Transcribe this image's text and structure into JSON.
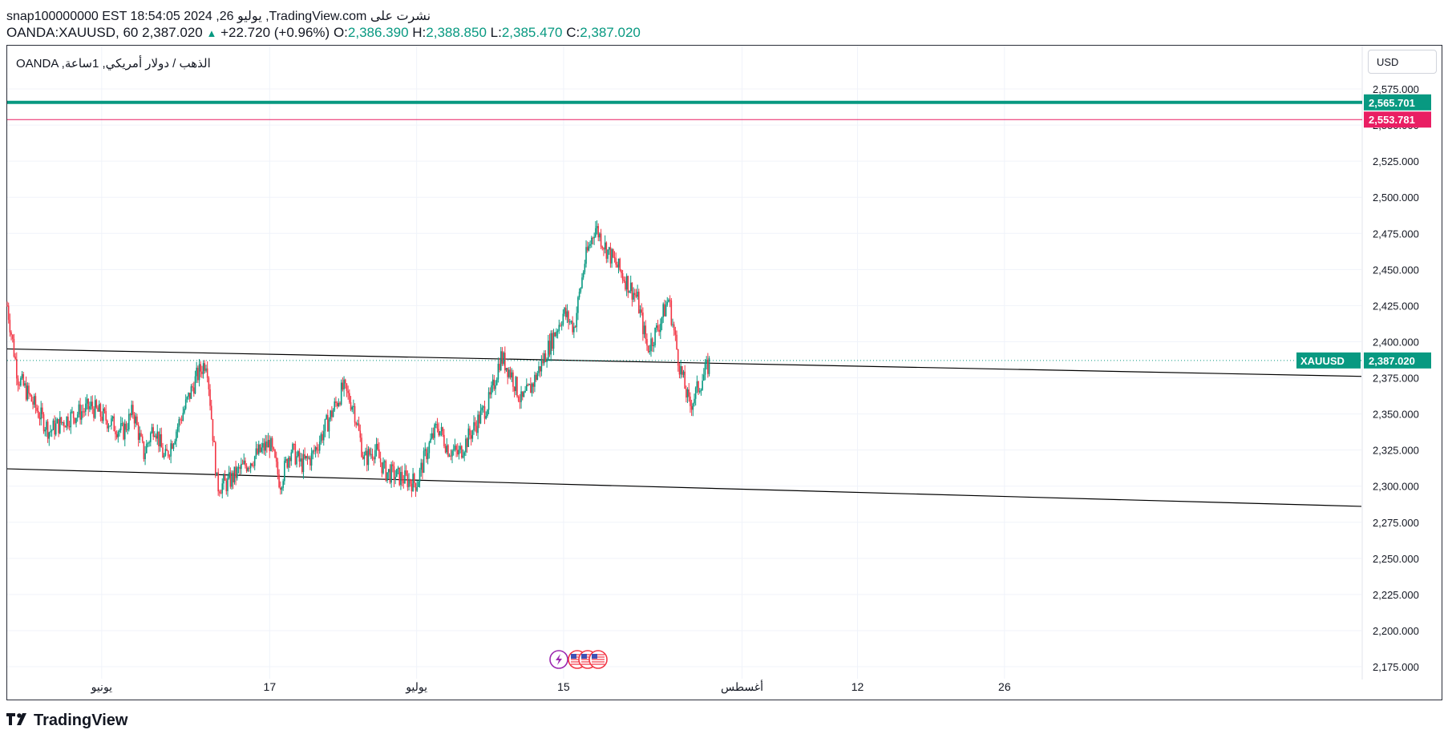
{
  "header": {
    "line1": "snap100000000 EST 18:54:05 2024 ,يوليو 26 ,TradingView.com نشرت على",
    "symbol": "OANDA:XAUUSD, 60",
    "last": "2,387.020",
    "change": "+22.720 (+0.96%)",
    "o_label": "O:",
    "o_value": "2,386.390",
    "h_label": "H:",
    "h_value": "2,388.850",
    "l_label": "L:",
    "l_value": "2,385.470",
    "c_label": "C:",
    "c_value": "2,387.020"
  },
  "instrument_label": "OANDA ,الذهب / دولار أمريكي, 1ساعة",
  "currency_button": "USD",
  "footer_logo": "TradingView",
  "colors": {
    "up": "#089981",
    "down": "#f23645",
    "pink": "#e91e63",
    "line": "#000000"
  },
  "chart_data": {
    "type": "candlestick",
    "ylim": [
      2162.5,
      2587.5
    ],
    "y_ticks": [
      2575,
      2550,
      2525,
      2500,
      2475,
      2450,
      2425,
      2400,
      2375,
      2350,
      2325,
      2300,
      2275,
      2250,
      2225,
      2200,
      2175
    ],
    "y_tick_labels": [
      "2,575.000",
      "2,550.000",
      "2,525.000",
      "2,500.000",
      "2,475.000",
      "2,450.000",
      "2,425.000",
      "2,400.000",
      "2,375.000",
      "2,350.000",
      "2,325.000",
      "2,300.000",
      "2,275.000",
      "2,250.000",
      "2,225.000",
      "2,200.000",
      "2,175.000"
    ],
    "x_axis": [
      {
        "label": "يونيو",
        "date": "2024-06-01"
      },
      {
        "label": "17",
        "date": "2024-06-17"
      },
      {
        "label": "يوليو",
        "date": "2024-07-01"
      },
      {
        "label": "15",
        "date": "2024-07-15"
      },
      {
        "label": "أغسطس",
        "date": "2024-08-01"
      },
      {
        "label": "12",
        "date": "2024-08-12"
      },
      {
        "label": "26",
        "date": "2024-08-26"
      }
    ],
    "x_range": [
      "2024-05-23",
      "2024-09-29"
    ],
    "price_path": [
      [
        "2024-05-23",
        2425
      ],
      [
        "2024-05-24",
        2376
      ],
      [
        "2024-05-27",
        2338
      ],
      [
        "2024-05-29",
        2348
      ],
      [
        "2024-05-31",
        2355
      ],
      [
        "2024-06-03",
        2337
      ],
      [
        "2024-06-04",
        2352
      ],
      [
        "2024-06-05",
        2322
      ],
      [
        "2024-06-06",
        2343
      ],
      [
        "2024-06-07",
        2318
      ],
      [
        "2024-06-10",
        2375
      ],
      [
        "2024-06-11",
        2388
      ],
      [
        "2024-06-12",
        2300
      ],
      [
        "2024-06-13",
        2302
      ],
      [
        "2024-06-14",
        2310
      ],
      [
        "2024-06-17",
        2330
      ],
      [
        "2024-06-18",
        2302
      ],
      [
        "2024-06-19",
        2326
      ],
      [
        "2024-06-20",
        2315
      ],
      [
        "2024-06-21",
        2320
      ],
      [
        "2024-06-24",
        2368
      ],
      [
        "2024-06-25",
        2355
      ],
      [
        "2024-06-26",
        2318
      ],
      [
        "2024-06-27",
        2326
      ],
      [
        "2024-06-28",
        2310
      ],
      [
        "2024-07-01",
        2302
      ],
      [
        "2024-07-02",
        2325
      ],
      [
        "2024-07-03",
        2342
      ],
      [
        "2024-07-04",
        2326
      ],
      [
        "2024-07-05",
        2322
      ],
      [
        "2024-07-08",
        2360
      ],
      [
        "2024-07-09",
        2390
      ],
      [
        "2024-07-10",
        2378
      ],
      [
        "2024-07-11",
        2358
      ],
      [
        "2024-07-12",
        2370
      ],
      [
        "2024-07-15",
        2420
      ],
      [
        "2024-07-16",
        2410
      ],
      [
        "2024-07-17",
        2455
      ],
      [
        "2024-07-18",
        2480
      ],
      [
        "2024-07-19",
        2465
      ],
      [
        "2024-07-22",
        2430
      ],
      [
        "2024-07-23",
        2395
      ],
      [
        "2024-07-24",
        2410
      ],
      [
        "2024-07-25",
        2430
      ],
      [
        "2024-07-26",
        2385
      ],
      [
        "2024-07-27",
        2355
      ],
      [
        "2024-07-29",
        2387
      ]
    ],
    "lines": [
      {
        "name": "upper-trendline",
        "from": [
          "2024-05-23",
          2395
        ],
        "to": [
          "2024-09-29",
          2376
        ]
      },
      {
        "name": "lower-trendline",
        "from": [
          "2024-05-23",
          2312
        ],
        "to": [
          "2024-09-29",
          2286
        ]
      }
    ],
    "levels": [
      {
        "value": 2565.701,
        "label": "2,565.701",
        "color": "#089981"
      },
      {
        "value": 2553.781,
        "label": "2,553.781",
        "color": "#e91e63"
      }
    ],
    "last_price": {
      "value": 2387.02,
      "label": "2,387.020",
      "symbol": "XAUUSD",
      "color": "#089981"
    },
    "event_icons": [
      "lightning-icon",
      "us-flag-icon",
      "us-flag-icon",
      "us-flag-icon"
    ]
  }
}
